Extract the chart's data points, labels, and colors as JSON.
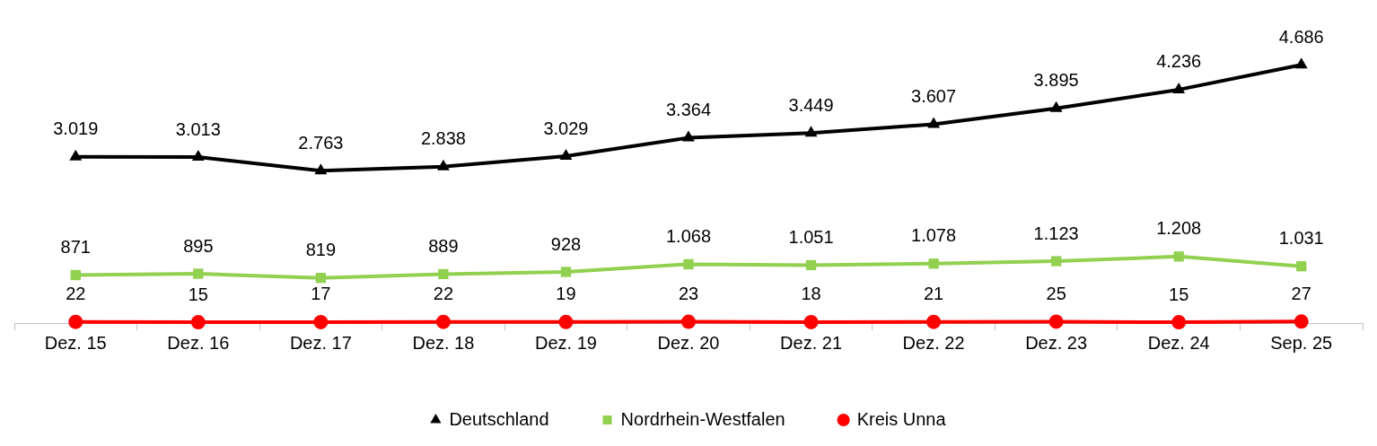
{
  "chart_data": {
    "type": "line",
    "categories": [
      "Dez. 15",
      "Dez. 16",
      "Dez. 17",
      "Dez. 18",
      "Dez. 19",
      "Dez. 20",
      "Dez. 21",
      "Dez. 22",
      "Dez. 23",
      "Dez. 24",
      "Sep. 25"
    ],
    "series": [
      {
        "name": "Deutschland",
        "color": "#000000",
        "marker": "triangle",
        "values": [
          3019,
          3013,
          2763,
          2838,
          3029,
          3364,
          3449,
          3607,
          3895,
          4236,
          4686
        ],
        "value_labels": [
          "3.019",
          "3.013",
          "2.763",
          "2.838",
          "3.029",
          "3.364",
          "3.449",
          "3.607",
          "3.895",
          "4.236",
          "4.686"
        ]
      },
      {
        "name": "Nordrhein-Westfalen",
        "color": "#92d050",
        "marker": "square",
        "values": [
          871,
          895,
          819,
          889,
          928,
          1068,
          1051,
          1078,
          1123,
          1208,
          1031
        ],
        "value_labels": [
          "871",
          "895",
          "819",
          "889",
          "928",
          "1.068",
          "1.051",
          "1.078",
          "1.123",
          "1.208",
          "1.031"
        ]
      },
      {
        "name": "Kreis Unna",
        "color": "#ff0000",
        "marker": "circle",
        "values": [
          22,
          15,
          17,
          22,
          19,
          23,
          18,
          21,
          25,
          15,
          27
        ],
        "value_labels": [
          "22",
          "15",
          "17",
          "22",
          "19",
          "23",
          "18",
          "21",
          "25",
          "15",
          "27"
        ]
      }
    ],
    "tick_labels": "x",
    "grid": false,
    "legend": "bottom",
    "line_style": "solid"
  }
}
